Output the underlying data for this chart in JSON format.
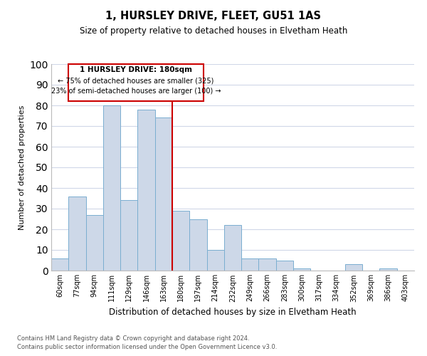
{
  "title": "1, HURSLEY DRIVE, FLEET, GU51 1AS",
  "subtitle": "Size of property relative to detached houses in Elvetham Heath",
  "xlabel": "Distribution of detached houses by size in Elvetham Heath",
  "ylabel": "Number of detached properties",
  "bar_labels": [
    "60sqm",
    "77sqm",
    "94sqm",
    "111sqm",
    "129sqm",
    "146sqm",
    "163sqm",
    "180sqm",
    "197sqm",
    "214sqm",
    "232sqm",
    "249sqm",
    "266sqm",
    "283sqm",
    "300sqm",
    "317sqm",
    "334sqm",
    "352sqm",
    "369sqm",
    "386sqm",
    "403sqm"
  ],
  "bar_heights": [
    6,
    36,
    27,
    80,
    34,
    78,
    74,
    29,
    25,
    10,
    22,
    6,
    6,
    5,
    1,
    0,
    0,
    3,
    0,
    1,
    0
  ],
  "bar_color": "#cdd8e8",
  "bar_edge_color": "#7aaed0",
  "vline_color": "#cc0000",
  "ylim": [
    0,
    100
  ],
  "yticks": [
    0,
    10,
    20,
    30,
    40,
    50,
    60,
    70,
    80,
    90,
    100
  ],
  "annotation_title": "1 HURSLEY DRIVE: 180sqm",
  "annotation_line1": "← 75% of detached houses are smaller (325)",
  "annotation_line2": "23% of semi-detached houses are larger (100) →",
  "annotation_box_color": "#ffffff",
  "annotation_box_edge": "#cc0000",
  "footer1": "Contains HM Land Registry data © Crown copyright and database right 2024.",
  "footer2": "Contains public sector information licensed under the Open Government Licence v3.0.",
  "grid_color": "#d0d8e8",
  "background_color": "#ffffff"
}
